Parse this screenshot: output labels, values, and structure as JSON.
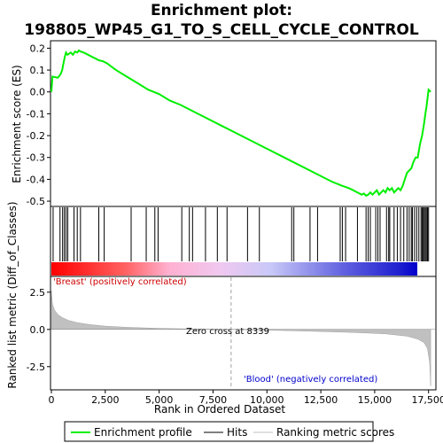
{
  "chart_data": {
    "type": "line",
    "title_line1": "Enrichment plot:",
    "title_line2": "198805_WP45_G1_TO_S_CELL_CYCLE_CONTROL",
    "top_panel": {
      "ylabel": "Enrichment score (ES)",
      "ylim": [
        -0.52,
        0.23
      ],
      "yticks": [
        0.2,
        0.1,
        0.0,
        -0.1,
        -0.2,
        -0.3,
        -0.4,
        -0.5
      ],
      "ytick_labels": [
        "0.2",
        "0.1",
        "0.0",
        "-0.1",
        "-0.2",
        "-0.3",
        "-0.4",
        "-0.5"
      ],
      "series_name": "Enrichment profile",
      "color": "#00ee00",
      "x": [
        0,
        50,
        300,
        420,
        500,
        560,
        620,
        680,
        750,
        900,
        1000,
        1100,
        1200,
        1280,
        1350,
        1500,
        1700,
        1900,
        2100,
        2200,
        2400,
        2600,
        3000,
        3500,
        4000,
        4500,
        5000,
        5500,
        6000,
        7000,
        8000,
        9000,
        10000,
        11000,
        12000,
        13000,
        13500,
        13800,
        14000,
        14200,
        14400,
        14500,
        14600,
        14700,
        14800,
        14900,
        15000,
        15100,
        15200,
        15300,
        15400,
        15500,
        15600,
        15700,
        15800,
        15900,
        16000,
        16100,
        16200,
        16300,
        16400,
        16500,
        16600,
        16700,
        16800,
        16900,
        17000,
        17100,
        17200,
        17300,
        17350,
        17400,
        17450,
        17500,
        17550,
        17600
      ],
      "y": [
        0.0,
        0.07,
        0.065,
        0.08,
        0.1,
        0.13,
        0.16,
        0.18,
        0.17,
        0.18,
        0.17,
        0.185,
        0.18,
        0.19,
        0.185,
        0.18,
        0.17,
        0.16,
        0.15,
        0.145,
        0.14,
        0.13,
        0.1,
        0.07,
        0.04,
        0.01,
        -0.01,
        -0.04,
        -0.06,
        -0.11,
        -0.16,
        -0.21,
        -0.26,
        -0.31,
        -0.36,
        -0.41,
        -0.43,
        -0.44,
        -0.45,
        -0.46,
        -0.47,
        -0.465,
        -0.475,
        -0.47,
        -0.46,
        -0.47,
        -0.46,
        -0.45,
        -0.47,
        -0.46,
        -0.45,
        -0.46,
        -0.44,
        -0.45,
        -0.44,
        -0.46,
        -0.45,
        -0.44,
        -0.45,
        -0.43,
        -0.4,
        -0.37,
        -0.36,
        -0.35,
        -0.32,
        -0.3,
        -0.3,
        -0.24,
        -0.2,
        -0.14,
        -0.1,
        -0.07,
        -0.03,
        0.01,
        0.005,
        0.0
      ]
    },
    "hits": [
      80,
      400,
      520,
      600,
      680,
      760,
      1050,
      1200,
      1350,
      2200,
      2450,
      3700,
      4400,
      4800,
      4950,
      6050,
      6400,
      6550,
      7150,
      7700,
      8150,
      9100,
      9650,
      11150,
      11250,
      12000,
      12350,
      13400,
      13500,
      13650,
      14200,
      14600,
      14700,
      14800,
      15050,
      15150,
      15250,
      15550,
      15650,
      15700,
      15900,
      16050,
      16200,
      16350,
      16500,
      16600,
      16700,
      16750,
      16850,
      16950,
      17050,
      17150,
      17200,
      17250,
      17300,
      17350,
      17400,
      17450,
      17500
    ],
    "bottom_panel": {
      "ylabel": "Ranked list metric (Diff_of_Classes)",
      "xlabel": "Rank in Ordered Dataset",
      "xlim": [
        0,
        17800
      ],
      "ylim": [
        -4.0,
        3.5
      ],
      "xticks": [
        0,
        2500,
        5000,
        7500,
        10000,
        12500,
        15000,
        17500
      ],
      "xtick_labels": [
        "0",
        "2,500",
        "5,000",
        "7,500",
        "10,000",
        "12,500",
        "15,000",
        "17,500"
      ],
      "yticks": [
        2.5,
        0.0,
        -2.5
      ],
      "ytick_labels": [
        "2.5",
        "0.0",
        "-2.5"
      ],
      "metric_x": [
        0,
        50,
        150,
        300,
        500,
        800,
        1200,
        1800,
        2500,
        3500,
        5000,
        6500,
        8339,
        10000,
        12000,
        14000,
        15500,
        16500,
        17000,
        17300,
        17450,
        17550,
        17600
      ],
      "metric_y": [
        2.6,
        1.7,
        1.3,
        1.0,
        0.8,
        0.6,
        0.45,
        0.32,
        0.22,
        0.14,
        0.07,
        0.03,
        0.0,
        -0.05,
        -0.12,
        -0.2,
        -0.3,
        -0.45,
        -0.65,
        -0.9,
        -1.3,
        -2.2,
        -3.8
      ],
      "zero_cross_label": "Zero cross at 8339",
      "zero_cross_rank": 8339,
      "pos_label": "'Breast' (positively correlated)",
      "neg_label": "'Blood' (negatively correlated)"
    },
    "legend": {
      "placement": "bottom",
      "items": [
        "Enrichment profile",
        "Hits",
        "Ranking metric scores"
      ]
    },
    "colors": {
      "profile": "#00ee00",
      "hits": "#000000",
      "metric": "#c0c0c0",
      "pos": "#cc0000",
      "neg": "#0000cc"
    }
  }
}
